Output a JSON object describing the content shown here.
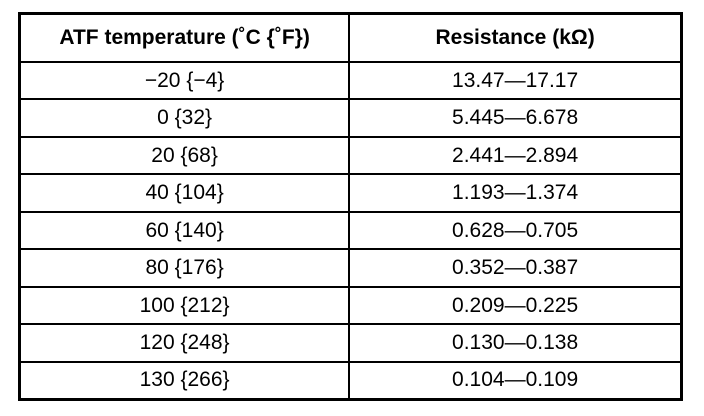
{
  "table": {
    "headers": [
      "ATF temperature (˚C {˚F})",
      "Resistance (kΩ)"
    ],
    "rows": [
      [
        "−20 {−4}",
        "13.47—17.17"
      ],
      [
        "0 {32}",
        "5.445—6.678"
      ],
      [
        "20 {68}",
        "2.441—2.894"
      ],
      [
        "40 {104}",
        "1.193—1.374"
      ],
      [
        "60 {140}",
        "0.628—0.705"
      ],
      [
        "80 {176}",
        "0.352—0.387"
      ],
      [
        "100 {212}",
        "0.209—0.225"
      ],
      [
        "120 {248}",
        "0.130—0.138"
      ],
      [
        "130 {266}",
        "0.104—0.109"
      ]
    ]
  }
}
